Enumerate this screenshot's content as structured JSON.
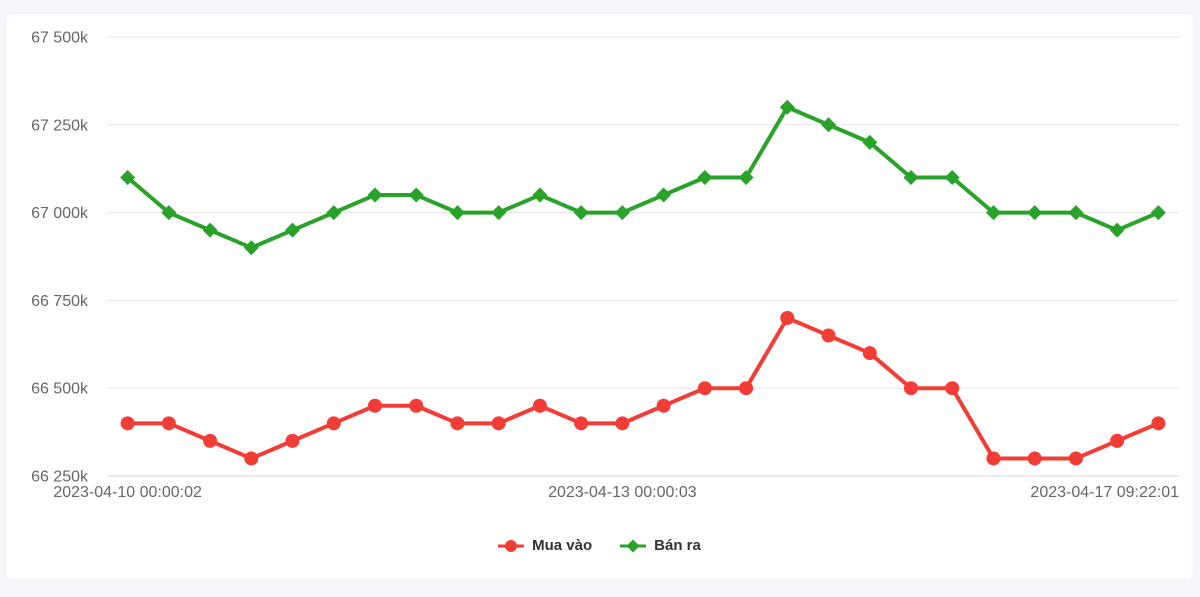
{
  "chart_data": {
    "type": "line",
    "title": "",
    "xlabel": "",
    "ylabel": "",
    "ylim": [
      66250,
      67500
    ],
    "grid": true,
    "legend_position": "bottom-center",
    "colors": {
      "grid_line": "#e6e6e6",
      "axis_line": "#ccd6eb",
      "axis_label": "#666666",
      "legend_text": "#333333",
      "panel_background": "#ffffff",
      "page_background": "#f4f6fa"
    },
    "y_ticks": [
      {
        "value": 67500,
        "label": "67 500k"
      },
      {
        "value": 67250,
        "label": "67 250k"
      },
      {
        "value": 67000,
        "label": "67 000k"
      },
      {
        "value": 66750,
        "label": "66 750k"
      },
      {
        "value": 66500,
        "label": "66 500k"
      },
      {
        "value": 66250,
        "label": "66 250k"
      }
    ],
    "x_ticks": [
      {
        "index": 0,
        "label": "2023-04-10 00:00:02",
        "align": "center"
      },
      {
        "index": 12,
        "label": "2023-04-13 00:00:03",
        "align": "center"
      },
      {
        "index": 25,
        "label": "2023-04-17 09:22:01",
        "align": "right"
      }
    ],
    "series": [
      {
        "name": "Mua vào",
        "color": "#f23c36",
        "marker": "circle",
        "values": [
          66400,
          66400,
          66350,
          66300,
          66350,
          66400,
          66450,
          66450,
          66400,
          66400,
          66450,
          66400,
          66400,
          66450,
          66500,
          66500,
          66700,
          66650,
          66600,
          66500,
          66500,
          66300,
          66300,
          66300,
          66350,
          66400
        ]
      },
      {
        "name": "Bán ra",
        "color": "#28a228",
        "marker": "diamond",
        "values": [
          67100,
          67000,
          66950,
          66900,
          66950,
          67000,
          67050,
          67050,
          67000,
          67000,
          67050,
          67000,
          67000,
          67050,
          67100,
          67100,
          67300,
          67250,
          67200,
          67100,
          67100,
          67000,
          67000,
          67000,
          66950,
          67000
        ]
      }
    ]
  }
}
